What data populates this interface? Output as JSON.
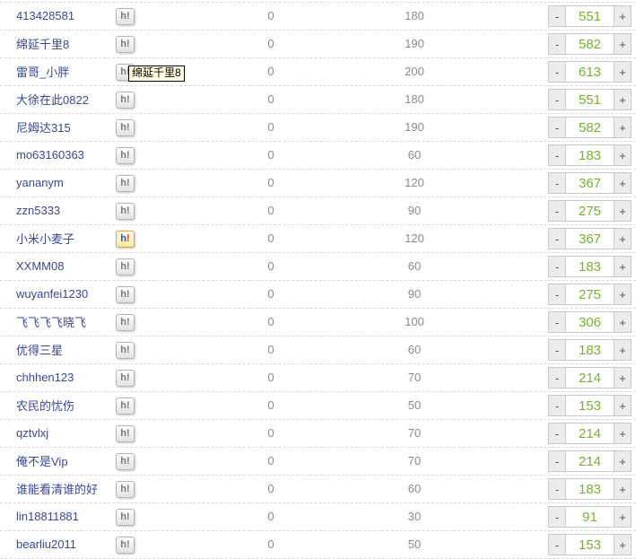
{
  "colors": {
    "username_link": "#3a4796",
    "muted_text": "#8a8a8a",
    "stepper_value_green": "#76b22e",
    "icon_active_border": "#dfa536",
    "icon_active_h": "#2b50c8",
    "icon_active_bang": "#e03226",
    "tooltip_bg": "#ffffe1",
    "row_separator": "#d9d9d9"
  },
  "icon": {
    "h": "h",
    "bang": "!"
  },
  "stepper": {
    "minus_label": "-",
    "plus_label": "+"
  },
  "tooltip": {
    "text": "绵延千里8",
    "row_index": 2
  },
  "rows": [
    {
      "username": "413428581",
      "zero": "0",
      "quantity": "180",
      "value": "551",
      "icon_active": false
    },
    {
      "username": "绵延千里8",
      "zero": "0",
      "quantity": "190",
      "value": "582",
      "icon_active": false
    },
    {
      "username": "雷哥_小胖",
      "zero": "0",
      "quantity": "200",
      "value": "613",
      "icon_active": false
    },
    {
      "username": "大徐在此0822",
      "zero": "0",
      "quantity": "180",
      "value": "551",
      "icon_active": false
    },
    {
      "username": "尼姆达315",
      "zero": "0",
      "quantity": "190",
      "value": "582",
      "icon_active": false
    },
    {
      "username": "mo63160363",
      "zero": "0",
      "quantity": "60",
      "value": "183",
      "icon_active": false
    },
    {
      "username": "yananym",
      "zero": "0",
      "quantity": "120",
      "value": "367",
      "icon_active": false
    },
    {
      "username": "zzn5333",
      "zero": "0",
      "quantity": "90",
      "value": "275",
      "icon_active": false
    },
    {
      "username": "小米小麦子",
      "zero": "0",
      "quantity": "120",
      "value": "367",
      "icon_active": true
    },
    {
      "username": "XXMM08",
      "zero": "0",
      "quantity": "60",
      "value": "183",
      "icon_active": false
    },
    {
      "username": "wuyanfei1230",
      "zero": "0",
      "quantity": "90",
      "value": "275",
      "icon_active": false
    },
    {
      "username": "飞飞飞飞晓飞",
      "zero": "0",
      "quantity": "100",
      "value": "306",
      "icon_active": false
    },
    {
      "username": "优得三星",
      "zero": "0",
      "quantity": "60",
      "value": "183",
      "icon_active": false
    },
    {
      "username": "chhhen123",
      "zero": "0",
      "quantity": "70",
      "value": "214",
      "icon_active": false
    },
    {
      "username": "农民的忧伤",
      "zero": "0",
      "quantity": "50",
      "value": "153",
      "icon_active": false
    },
    {
      "username": "qztvlxj",
      "zero": "0",
      "quantity": "70",
      "value": "214",
      "icon_active": false
    },
    {
      "username": "俺不是Vip",
      "zero": "0",
      "quantity": "70",
      "value": "214",
      "icon_active": false
    },
    {
      "username": "谁能看清谁的好",
      "zero": "0",
      "quantity": "60",
      "value": "183",
      "icon_active": false
    },
    {
      "username": "lin18811881",
      "zero": "0",
      "quantity": "30",
      "value": "91",
      "icon_active": false
    },
    {
      "username": "bearliu2011",
      "zero": "0",
      "quantity": "50",
      "value": "153",
      "icon_active": false
    }
  ]
}
